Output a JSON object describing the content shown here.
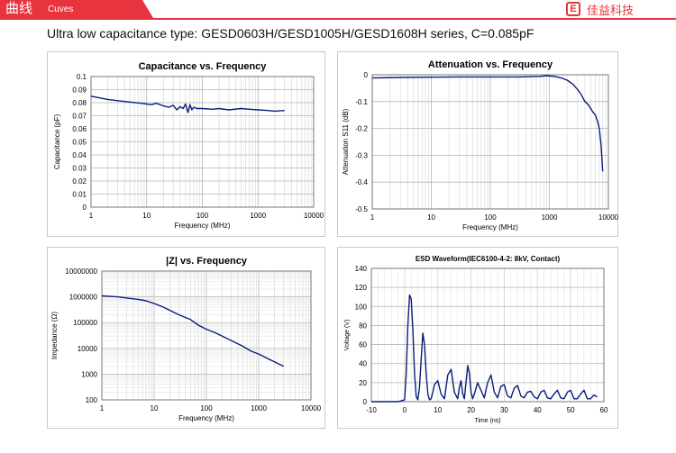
{
  "header": {
    "title": "曲线",
    "subtitle": "Cuves",
    "logo_icon": "E",
    "logo_text": "佳益科技"
  },
  "page_subtitle": "Ultra low capacitance type: GESD0603H/GESD1005H/GESD1608H series, C=0.085pF",
  "colors": {
    "accent": "#e8343f",
    "line": "#0a1e78"
  },
  "chart_data": [
    {
      "type": "line",
      "title": "Capacitance vs. Frequency",
      "xlabel": "Frequency (MHz)",
      "ylabel": "Capacitance (pF)",
      "xscale": "log",
      "xlim": [
        1,
        10000
      ],
      "ylim": [
        0,
        0.1
      ],
      "xticks": [
        "1",
        "10",
        "100",
        "1000",
        "10000"
      ],
      "yticks": [
        "0",
        "0.01",
        "0.02",
        "0.03",
        "0.04",
        "0.05",
        "0.06",
        "0.07",
        "0.08",
        "0.09",
        "0.1"
      ],
      "grid": true,
      "series": [
        {
          "x": [
            1,
            1.5,
            2,
            3,
            5,
            8,
            12,
            15,
            20,
            25,
            30,
            35,
            40,
            45,
            50,
            55,
            60,
            65,
            70,
            80,
            100,
            150,
            200,
            300,
            500,
            700,
            1000,
            1500,
            2000,
            3000
          ],
          "y": [
            0.085,
            0.0835,
            0.0825,
            0.0815,
            0.0805,
            0.0795,
            0.0785,
            0.0795,
            0.0775,
            0.0765,
            0.078,
            0.0745,
            0.077,
            0.0755,
            0.079,
            0.0725,
            0.0785,
            0.0745,
            0.0765,
            0.0755,
            0.0755,
            0.075,
            0.0755,
            0.0745,
            0.0755,
            0.075,
            0.0745,
            0.074,
            0.0735,
            0.074
          ]
        }
      ]
    },
    {
      "type": "line",
      "title": "Attenuation vs. Frequency",
      "xlabel": "Frequency (MHz)",
      "ylabel": "Attenuation S11 (dB)",
      "xscale": "log",
      "xlim": [
        1,
        10000
      ],
      "ylim": [
        -0.5,
        0
      ],
      "xticks": [
        "1",
        "10",
        "100",
        "1000",
        "10000"
      ],
      "yticks": [
        "-0.5",
        "-0.4",
        "-0.3",
        "-0.2",
        "-0.1",
        "0"
      ],
      "grid": true,
      "series": [
        {
          "x": [
            1,
            3,
            10,
            30,
            100,
            300,
            500,
            700,
            900,
            1200,
            1600,
            2000,
            2500,
            3000,
            3500,
            4000,
            4500,
            5000,
            5500,
            6000,
            6500,
            7000,
            7500,
            8000
          ],
          "y": [
            -0.012,
            -0.01,
            -0.009,
            -0.008,
            -0.008,
            -0.008,
            -0.007,
            -0.006,
            -0.004,
            -0.006,
            -0.012,
            -0.02,
            -0.035,
            -0.055,
            -0.075,
            -0.1,
            -0.11,
            -0.125,
            -0.14,
            -0.15,
            -0.17,
            -0.2,
            -0.26,
            -0.36
          ]
        }
      ]
    },
    {
      "type": "line",
      "title": "|Z| vs. Frequency",
      "xlabel": "Frequency (MHz)",
      "ylabel": "Impedance (Ω)",
      "xscale": "log",
      "yscale": "log",
      "xlim": [
        1,
        10000
      ],
      "ylim": [
        100,
        10000000
      ],
      "xticks": [
        "1",
        "10",
        "100",
        "1000",
        "10000"
      ],
      "yticks": [
        "100",
        "1000",
        "10000",
        "100000",
        "1000000",
        "10000000"
      ],
      "grid": true,
      "series": [
        {
          "x": [
            1,
            2,
            3,
            5,
            7,
            10,
            15,
            20,
            30,
            50,
            70,
            100,
            150,
            200,
            300,
            500,
            700,
            1000,
            1500,
            2000,
            3000
          ],
          "y": [
            1100000,
            1000000,
            900000,
            800000,
            700000,
            550000,
            400000,
            300000,
            200000,
            130000,
            80000,
            55000,
            40000,
            30000,
            20000,
            12000,
            8000,
            6000,
            4000,
            3000,
            2000
          ]
        }
      ]
    },
    {
      "type": "line",
      "title": "ESD Waveform(IEC6100-4-2: 8kV, Contact)",
      "xlabel": "Time (ns)",
      "ylabel": "Voltage (V)",
      "xlim": [
        -10,
        60
      ],
      "ylim": [
        0,
        140
      ],
      "xticks": [
        "-10",
        "0",
        "10",
        "20",
        "30",
        "40",
        "50",
        "60"
      ],
      "yticks": [
        "0",
        "20",
        "40",
        "60",
        "80",
        "100",
        "120",
        "140"
      ],
      "grid": true,
      "series": [
        {
          "x": [
            -10,
            -2,
            0,
            0.5,
            1,
            1.5,
            2,
            2.5,
            3,
            3.5,
            4,
            4.5,
            5,
            5.5,
            6,
            6.5,
            7,
            7.5,
            8,
            8.5,
            9,
            10,
            11,
            12,
            13,
            14,
            15,
            16,
            16.5,
            17,
            17.5,
            18,
            18.5,
            19,
            19.5,
            20,
            20.5,
            21,
            22,
            23,
            24,
            25,
            26,
            27,
            28,
            29,
            30,
            31,
            32,
            33,
            34,
            35,
            36,
            37,
            38,
            39,
            40,
            41,
            42,
            43,
            44,
            45,
            46,
            47,
            48,
            49,
            50,
            51,
            52,
            53,
            54,
            55,
            56,
            57,
            58
          ],
          "y": [
            0,
            0,
            2,
            30,
            80,
            112,
            108,
            75,
            30,
            5,
            2,
            15,
            45,
            72,
            60,
            30,
            8,
            2,
            3,
            10,
            18,
            22,
            8,
            3,
            28,
            34,
            10,
            3,
            15,
            22,
            8,
            3,
            20,
            38,
            30,
            10,
            3,
            8,
            20,
            12,
            4,
            20,
            28,
            10,
            4,
            16,
            18,
            6,
            4,
            14,
            17,
            6,
            4,
            10,
            11,
            5,
            3,
            10,
            12,
            4,
            3,
            8,
            12,
            4,
            3,
            10,
            12,
            3,
            3,
            8,
            12,
            3,
            3,
            7,
            5
          ]
        }
      ]
    }
  ]
}
